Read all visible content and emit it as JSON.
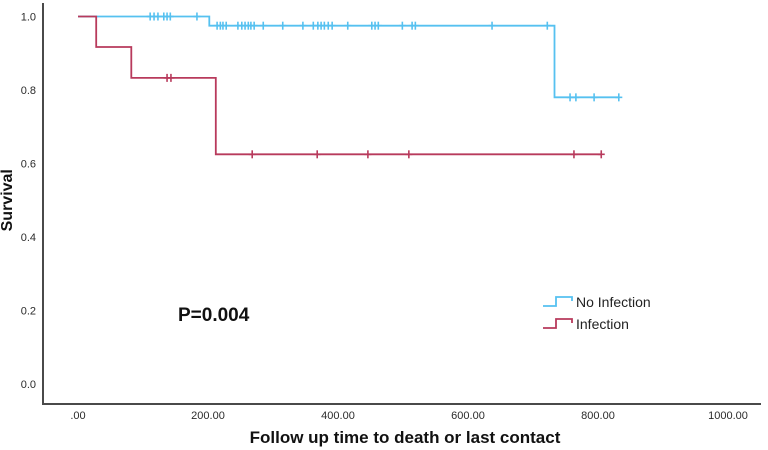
{
  "chart_data": {
    "type": "line",
    "subtype": "kaplan-meier-step",
    "xlabel": "Follow up time to death or last contact",
    "ylabel": "Survival",
    "annotation": "P=0.004",
    "xlim": [
      0,
      1000
    ],
    "ylim": [
      0.0,
      1.0
    ],
    "xticks": [
      {
        "label": ".00",
        "value": 0
      },
      {
        "label": "200.00",
        "value": 200
      },
      {
        "label": "400.00",
        "value": 400
      },
      {
        "label": "600.00",
        "value": 600
      },
      {
        "label": "800.00",
        "value": 800
      },
      {
        "label": "1000.00",
        "value": 1000
      }
    ],
    "yticks": [
      {
        "label": "1.0",
        "value": 1.0
      },
      {
        "label": "0.8",
        "value": 0.8
      },
      {
        "label": "0.6",
        "value": 0.6
      },
      {
        "label": "0.4",
        "value": 0.4
      },
      {
        "label": "0.2",
        "value": 0.2
      },
      {
        "label": "0.0",
        "value": 0.0
      }
    ],
    "legend": {
      "position": "right-middle",
      "entries": [
        {
          "label": "No Infection",
          "color": "#56C1F0"
        },
        {
          "label": "Infection",
          "color": "#B83A5C"
        }
      ]
    },
    "series": [
      {
        "name": "No Infection",
        "color": "#56C1F0",
        "steps": [
          [
            0,
            1.0
          ],
          [
            202,
            1.0
          ],
          [
            202,
            0.975
          ],
          [
            733,
            0.975
          ],
          [
            733,
            0.78
          ],
          [
            832,
            0.78
          ]
        ],
        "censors": [
          [
            111,
            1.0
          ],
          [
            117,
            1.0
          ],
          [
            123,
            1.0
          ],
          [
            132,
            1.0
          ],
          [
            137,
            1.0
          ],
          [
            142,
            1.0
          ],
          [
            183,
            1.0
          ],
          [
            214,
            0.975
          ],
          [
            219,
            0.975
          ],
          [
            223,
            0.975
          ],
          [
            228,
            0.975
          ],
          [
            246,
            0.975
          ],
          [
            252,
            0.975
          ],
          [
            257,
            0.975
          ],
          [
            262,
            0.975
          ],
          [
            266,
            0.975
          ],
          [
            271,
            0.975
          ],
          [
            285,
            0.975
          ],
          [
            315,
            0.975
          ],
          [
            346,
            0.975
          ],
          [
            362,
            0.975
          ],
          [
            369,
            0.975
          ],
          [
            374,
            0.975
          ],
          [
            379,
            0.975
          ],
          [
            385,
            0.975
          ],
          [
            391,
            0.975
          ],
          [
            415,
            0.975
          ],
          [
            452,
            0.975
          ],
          [
            457,
            0.975
          ],
          [
            462,
            0.975
          ],
          [
            499,
            0.975
          ],
          [
            514,
            0.975
          ],
          [
            519,
            0.975
          ],
          [
            637,
            0.975
          ],
          [
            722,
            0.975
          ],
          [
            757,
            0.78
          ],
          [
            766,
            0.78
          ],
          [
            794,
            0.78
          ],
          [
            832,
            0.78
          ]
        ]
      },
      {
        "name": "Infection",
        "color": "#B83A5C",
        "steps": [
          [
            0,
            1.0
          ],
          [
            28,
            1.0
          ],
          [
            28,
            0.917
          ],
          [
            82,
            0.917
          ],
          [
            82,
            0.833
          ],
          [
            212,
            0.833
          ],
          [
            212,
            0.625
          ],
          [
            806,
            0.625
          ]
        ],
        "censors": [
          [
            137,
            0.833
          ],
          [
            143,
            0.833
          ],
          [
            268,
            0.625
          ],
          [
            368,
            0.625
          ],
          [
            446,
            0.625
          ],
          [
            509,
            0.625
          ],
          [
            763,
            0.625
          ],
          [
            805,
            0.625
          ]
        ]
      }
    ],
    "axis_color": "#4a4a4a",
    "text_color": "#2b2b2b"
  }
}
